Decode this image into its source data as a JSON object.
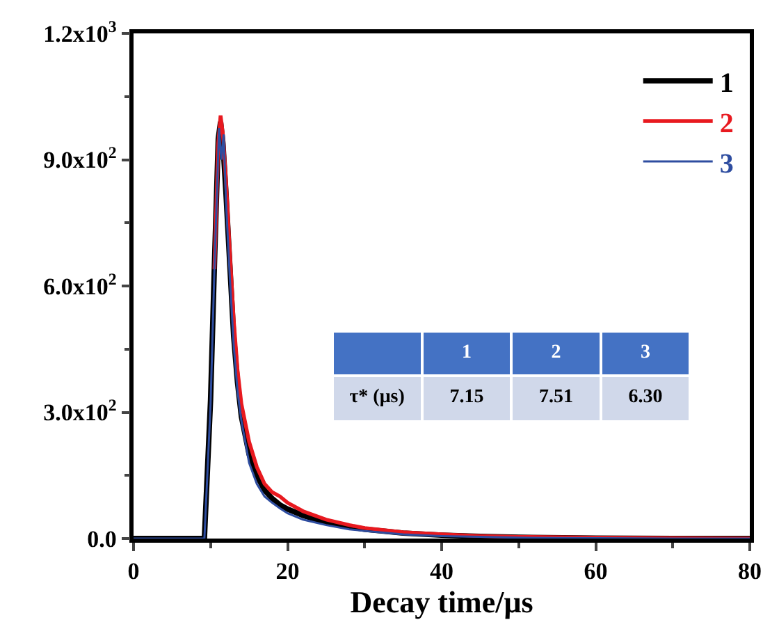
{
  "chart_data": {
    "type": "line",
    "xlabel": "Decay time/μs",
    "xlim": [
      0,
      80
    ],
    "xticks": [
      0,
      20,
      40,
      60,
      80
    ],
    "ylim": [
      0,
      1200
    ],
    "yticks": [
      {
        "value": 0,
        "label": "0.0"
      },
      {
        "value": 300,
        "label": "3.0x10$^{2}$"
      },
      {
        "value": 600,
        "label": "6.0x10$^{2}$"
      },
      {
        "value": 900,
        "label": "9.0x10$^{2}$"
      },
      {
        "value": 1200,
        "label": "1.2x10$^{3}$"
      }
    ],
    "legend": "top right",
    "marker": "none",
    "line_style": "solid",
    "series": [
      {
        "name": "1",
        "color": "#000000",
        "x": [
          0,
          9.2,
          10,
          10.5,
          11,
          11.3,
          11.6,
          12,
          12.5,
          13,
          13.5,
          14,
          15,
          16,
          17,
          18,
          19,
          20,
          22,
          25,
          28,
          30,
          35,
          40,
          45,
          50,
          60,
          70,
          80
        ],
        "values": [
          0,
          0,
          330,
          650,
          950,
          990,
          940,
          820,
          650,
          480,
          370,
          290,
          200,
          150,
          115,
          95,
          80,
          70,
          55,
          38,
          28,
          22,
          13,
          8,
          5,
          3,
          1,
          0,
          0
        ]
      },
      {
        "name": "2",
        "color": "#e8191f",
        "x": [
          10.5,
          11,
          11.3,
          11.6,
          12,
          12.5,
          13,
          13.5,
          14,
          15,
          16,
          17,
          18,
          19,
          20,
          22,
          25,
          28,
          30,
          35,
          40,
          45,
          50,
          60,
          70,
          80
        ],
        "values": [
          640,
          940,
          1005,
          960,
          850,
          680,
          520,
          400,
          320,
          230,
          170,
          130,
          110,
          100,
          85,
          65,
          45,
          32,
          25,
          15,
          10,
          6,
          4,
          2,
          1,
          0
        ]
      },
      {
        "name": "3",
        "color": "#2e4da0",
        "x": [
          0,
          9.2,
          10,
          10.5,
          11.1,
          11.4,
          11.7,
          12,
          12.5,
          13,
          13.5,
          14,
          15,
          16,
          17,
          18,
          19,
          20,
          22,
          25,
          28,
          30,
          35,
          40,
          45,
          50,
          60,
          70,
          80
        ],
        "values": [
          0,
          0,
          320,
          640,
          975,
          900,
          960,
          800,
          620,
          460,
          350,
          280,
          180,
          130,
          100,
          85,
          72,
          60,
          45,
          32,
          22,
          18,
          10,
          6,
          4,
          2,
          1,
          0,
          0
        ]
      }
    ],
    "annotations": [
      "1",
      "2",
      "3",
      "τ* (μs)",
      "7.15",
      "7.51",
      "6.30"
    ]
  }
}
